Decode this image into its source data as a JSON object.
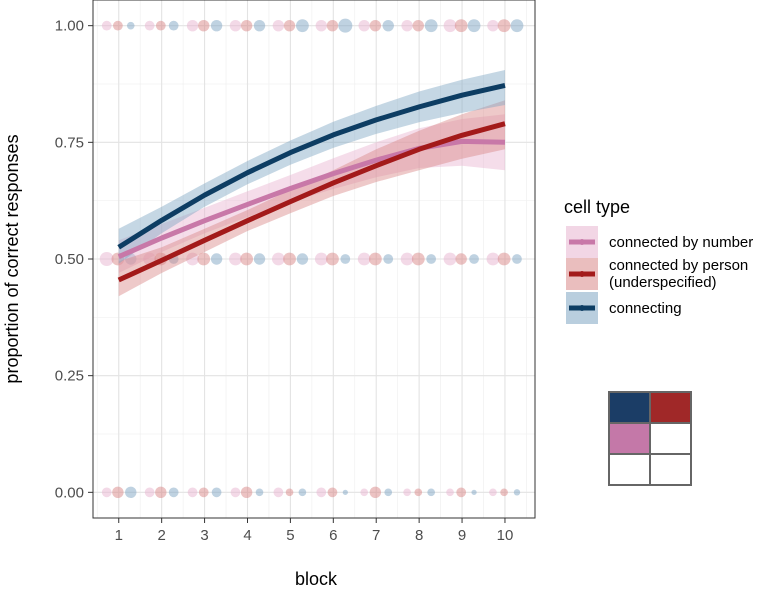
{
  "chart_data": {
    "type": "scatter",
    "xlabel": "block",
    "ylabel": "proportion of correct responses",
    "xlim": [
      0.4,
      10.7
    ],
    "ylim": [
      -0.055,
      1.055
    ],
    "x_ticks": [
      1,
      2,
      3,
      4,
      5,
      6,
      7,
      8,
      9,
      10
    ],
    "x_tick_labels": [
      "1",
      "2",
      "3",
      "4",
      "5",
      "6",
      "7",
      "8",
      "9",
      "10"
    ],
    "y_ticks": [
      0,
      0.25,
      0.5,
      0.75,
      1
    ],
    "y_tick_labels": [
      "0.00",
      "0.25",
      "0.50",
      "0.75",
      "1.00"
    ],
    "grid": true,
    "legend": {
      "title": "cell type",
      "position": "right",
      "entries": [
        "connected by number",
        "connected by person\n(underspecified)",
        "connecting"
      ]
    },
    "series": [
      {
        "name": "connected by number",
        "color": "#c878a8",
        "fill": "#e8b4d0",
        "x_offset": -0.28,
        "fit": {
          "x": [
            1,
            2,
            3,
            4,
            5,
            6,
            7,
            8,
            9,
            10
          ],
          "y": [
            0.505,
            0.545,
            0.582,
            0.617,
            0.651,
            0.683,
            0.712,
            0.737,
            0.752,
            0.75
          ],
          "lower": [
            0.47,
            0.515,
            0.555,
            0.59,
            0.622,
            0.65,
            0.675,
            0.695,
            0.7,
            0.69
          ],
          "upper": [
            0.54,
            0.575,
            0.61,
            0.645,
            0.68,
            0.716,
            0.75,
            0.78,
            0.8,
            0.81
          ]
        },
        "points": [
          {
            "x": 1,
            "y": 1.0,
            "n": 2
          },
          {
            "x": 2,
            "y": 1.0,
            "n": 2
          },
          {
            "x": 3,
            "y": 1.0,
            "n": 3
          },
          {
            "x": 4,
            "y": 1.0,
            "n": 3
          },
          {
            "x": 5,
            "y": 1.0,
            "n": 3
          },
          {
            "x": 6,
            "y": 1.0,
            "n": 3
          },
          {
            "x": 7,
            "y": 1.0,
            "n": 3
          },
          {
            "x": 8,
            "y": 1.0,
            "n": 3
          },
          {
            "x": 9,
            "y": 1.0,
            "n": 4
          },
          {
            "x": 10,
            "y": 1.0,
            "n": 3
          },
          {
            "x": 1,
            "y": 0.5,
            "n": 5
          },
          {
            "x": 2,
            "y": 0.5,
            "n": 4
          },
          {
            "x": 3,
            "y": 0.5,
            "n": 4
          },
          {
            "x": 4,
            "y": 0.5,
            "n": 4
          },
          {
            "x": 5,
            "y": 0.5,
            "n": 4
          },
          {
            "x": 6,
            "y": 0.5,
            "n": 4
          },
          {
            "x": 7,
            "y": 0.5,
            "n": 4
          },
          {
            "x": 8,
            "y": 0.5,
            "n": 4
          },
          {
            "x": 9,
            "y": 0.5,
            "n": 4
          },
          {
            "x": 10,
            "y": 0.5,
            "n": 4
          },
          {
            "x": 1,
            "y": 0.0,
            "n": 2
          },
          {
            "x": 2,
            "y": 0.0,
            "n": 2
          },
          {
            "x": 3,
            "y": 0.0,
            "n": 2
          },
          {
            "x": 4,
            "y": 0.0,
            "n": 2
          },
          {
            "x": 5,
            "y": 0.0,
            "n": 2
          },
          {
            "x": 6,
            "y": 0.0,
            "n": 2
          },
          {
            "x": 7,
            "y": 0.0,
            "n": 1
          },
          {
            "x": 8,
            "y": 0.0,
            "n": 1
          },
          {
            "x": 9,
            "y": 0.0,
            "n": 1
          },
          {
            "x": 10,
            "y": 0.0,
            "n": 1
          }
        ]
      },
      {
        "name": "connected by person (underspecified)",
        "color": "#a31a1a",
        "fill": "#d98888",
        "x_offset": -0.02,
        "fit": {
          "x": [
            1,
            2,
            3,
            4,
            5,
            6,
            7,
            8,
            9,
            10
          ],
          "y": [
            0.455,
            0.497,
            0.54,
            0.582,
            0.623,
            0.663,
            0.7,
            0.735,
            0.765,
            0.79
          ],
          "lower": [
            0.42,
            0.47,
            0.515,
            0.56,
            0.598,
            0.635,
            0.665,
            0.69,
            0.715,
            0.735
          ],
          "upper": [
            0.495,
            0.525,
            0.565,
            0.605,
            0.648,
            0.69,
            0.735,
            0.775,
            0.81,
            0.84
          ]
        },
        "points": [
          {
            "x": 1,
            "y": 1.0,
            "n": 2
          },
          {
            "x": 2,
            "y": 1.0,
            "n": 2
          },
          {
            "x": 3,
            "y": 1.0,
            "n": 3
          },
          {
            "x": 4,
            "y": 1.0,
            "n": 3
          },
          {
            "x": 5,
            "y": 1.0,
            "n": 3
          },
          {
            "x": 6,
            "y": 1.0,
            "n": 3
          },
          {
            "x": 7,
            "y": 1.0,
            "n": 3
          },
          {
            "x": 8,
            "y": 1.0,
            "n": 3
          },
          {
            "x": 9,
            "y": 1.0,
            "n": 4
          },
          {
            "x": 10,
            "y": 1.0,
            "n": 4
          },
          {
            "x": 1,
            "y": 0.5,
            "n": 4
          },
          {
            "x": 2,
            "y": 0.5,
            "n": 4
          },
          {
            "x": 3,
            "y": 0.5,
            "n": 4
          },
          {
            "x": 4,
            "y": 0.5,
            "n": 4
          },
          {
            "x": 5,
            "y": 0.5,
            "n": 4
          },
          {
            "x": 6,
            "y": 0.5,
            "n": 4
          },
          {
            "x": 7,
            "y": 0.5,
            "n": 4
          },
          {
            "x": 8,
            "y": 0.5,
            "n": 4
          },
          {
            "x": 9,
            "y": 0.5,
            "n": 3
          },
          {
            "x": 10,
            "y": 0.5,
            "n": 4
          },
          {
            "x": 1,
            "y": 0.0,
            "n": 3
          },
          {
            "x": 2,
            "y": 0.0,
            "n": 3
          },
          {
            "x": 3,
            "y": 0.0,
            "n": 2
          },
          {
            "x": 4,
            "y": 0.0,
            "n": 3
          },
          {
            "x": 5,
            "y": 0.0,
            "n": 1
          },
          {
            "x": 6,
            "y": 0.0,
            "n": 2
          },
          {
            "x": 7,
            "y": 0.0,
            "n": 3
          },
          {
            "x": 8,
            "y": 0.0,
            "n": 1
          },
          {
            "x": 9,
            "y": 0.0,
            "n": 2
          },
          {
            "x": 10,
            "y": 0.0,
            "n": 1
          }
        ]
      },
      {
        "name": "connecting",
        "color": "#0d3d63",
        "fill": "#7fa6c3",
        "x_offset": 0.28,
        "fit": {
          "x": [
            1,
            2,
            3,
            4,
            5,
            6,
            7,
            8,
            9,
            10
          ],
          "y": [
            0.525,
            0.583,
            0.637,
            0.685,
            0.728,
            0.766,
            0.798,
            0.826,
            0.851,
            0.872
          ],
          "lower": [
            0.49,
            0.555,
            0.612,
            0.66,
            0.702,
            0.738,
            0.768,
            0.793,
            0.813,
            0.83
          ],
          "upper": [
            0.565,
            0.612,
            0.662,
            0.71,
            0.754,
            0.794,
            0.828,
            0.859,
            0.884,
            0.905
          ]
        },
        "points": [
          {
            "x": 1,
            "y": 1.0,
            "n": 1
          },
          {
            "x": 2,
            "y": 1.0,
            "n": 2
          },
          {
            "x": 3,
            "y": 1.0,
            "n": 3
          },
          {
            "x": 4,
            "y": 1.0,
            "n": 3
          },
          {
            "x": 5,
            "y": 1.0,
            "n": 4
          },
          {
            "x": 6,
            "y": 1.0,
            "n": 5
          },
          {
            "x": 7,
            "y": 1.0,
            "n": 3
          },
          {
            "x": 8,
            "y": 1.0,
            "n": 4
          },
          {
            "x": 9,
            "y": 1.0,
            "n": 4
          },
          {
            "x": 10,
            "y": 1.0,
            "n": 4
          },
          {
            "x": 1,
            "y": 0.5,
            "n": 3
          },
          {
            "x": 2,
            "y": 0.5,
            "n": 2
          },
          {
            "x": 3,
            "y": 0.5,
            "n": 3
          },
          {
            "x": 4,
            "y": 0.5,
            "n": 3
          },
          {
            "x": 5,
            "y": 0.5,
            "n": 3
          },
          {
            "x": 6,
            "y": 0.5,
            "n": 2
          },
          {
            "x": 7,
            "y": 0.5,
            "n": 2
          },
          {
            "x": 8,
            "y": 0.5,
            "n": 2
          },
          {
            "x": 9,
            "y": 0.5,
            "n": 2
          },
          {
            "x": 10,
            "y": 0.5,
            "n": 2
          },
          {
            "x": 1,
            "y": 0.0,
            "n": 3
          },
          {
            "x": 2,
            "y": 0.0,
            "n": 2
          },
          {
            "x": 3,
            "y": 0.0,
            "n": 2
          },
          {
            "x": 4,
            "y": 0.0,
            "n": 1
          },
          {
            "x": 5,
            "y": 0.0,
            "n": 1
          },
          {
            "x": 6,
            "y": 0.0,
            "n": 0.3
          },
          {
            "x": 7,
            "y": 0.0,
            "n": 1
          },
          {
            "x": 8,
            "y": 0.0,
            "n": 1
          },
          {
            "x": 9,
            "y": 0.0,
            "n": 0.3
          },
          {
            "x": 10,
            "y": 0.0,
            "n": 0.6
          }
        ]
      }
    ],
    "inset_grid": {
      "rows": 3,
      "cols": 2,
      "cell_colors": [
        "#1b3d66",
        "#a02828",
        "#c478a8",
        "#ffffff",
        "#ffffff",
        "#ffffff"
      ],
      "border_color": "#666666"
    }
  }
}
